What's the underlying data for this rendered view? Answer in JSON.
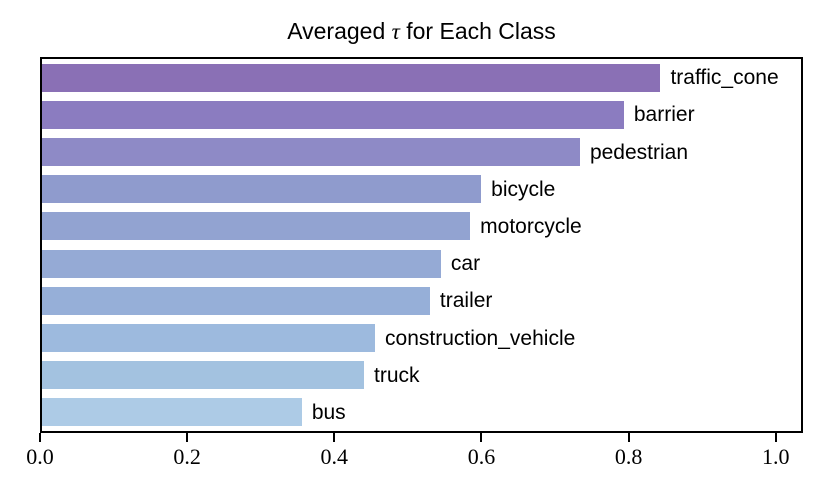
{
  "title": {
    "prefix": "Averaged ",
    "tau": "τ",
    "suffix": " for Each Class"
  },
  "style": {
    "background": "#ffffff",
    "axis_color": "#000000",
    "text_color": "#000000"
  },
  "chart_data": {
    "type": "bar",
    "orientation": "horizontal",
    "title": "Averaged τ for Each Class",
    "categories": [
      "traffic_cone",
      "barrier",
      "pedestrian",
      "bicycle",
      "motorcycle",
      "car",
      "trailer",
      "construction_vehicle",
      "truck",
      "bus"
    ],
    "values": [
      0.845,
      0.795,
      0.735,
      0.6,
      0.585,
      0.545,
      0.53,
      0.455,
      0.44,
      0.355
    ],
    "bar_colors": [
      "#8a70b5",
      "#8b7cc0",
      "#8e8ac6",
      "#8f9bcd",
      "#92a3d1",
      "#95aad5",
      "#96afd8",
      "#9dbade",
      "#a3c2e0",
      "#adcbe6"
    ],
    "xlabel": "",
    "ylabel": "",
    "xlim": [
      0,
      1.037
    ],
    "xtick_values": [
      0.0,
      0.2,
      0.4,
      0.6,
      0.8,
      1.0
    ],
    "xtick_labels": [
      "0.0",
      "0.2",
      "0.4",
      "0.6",
      "0.8",
      "1.0"
    ],
    "grid": false,
    "legend": false,
    "bar_label_position": "right-of-bar"
  }
}
